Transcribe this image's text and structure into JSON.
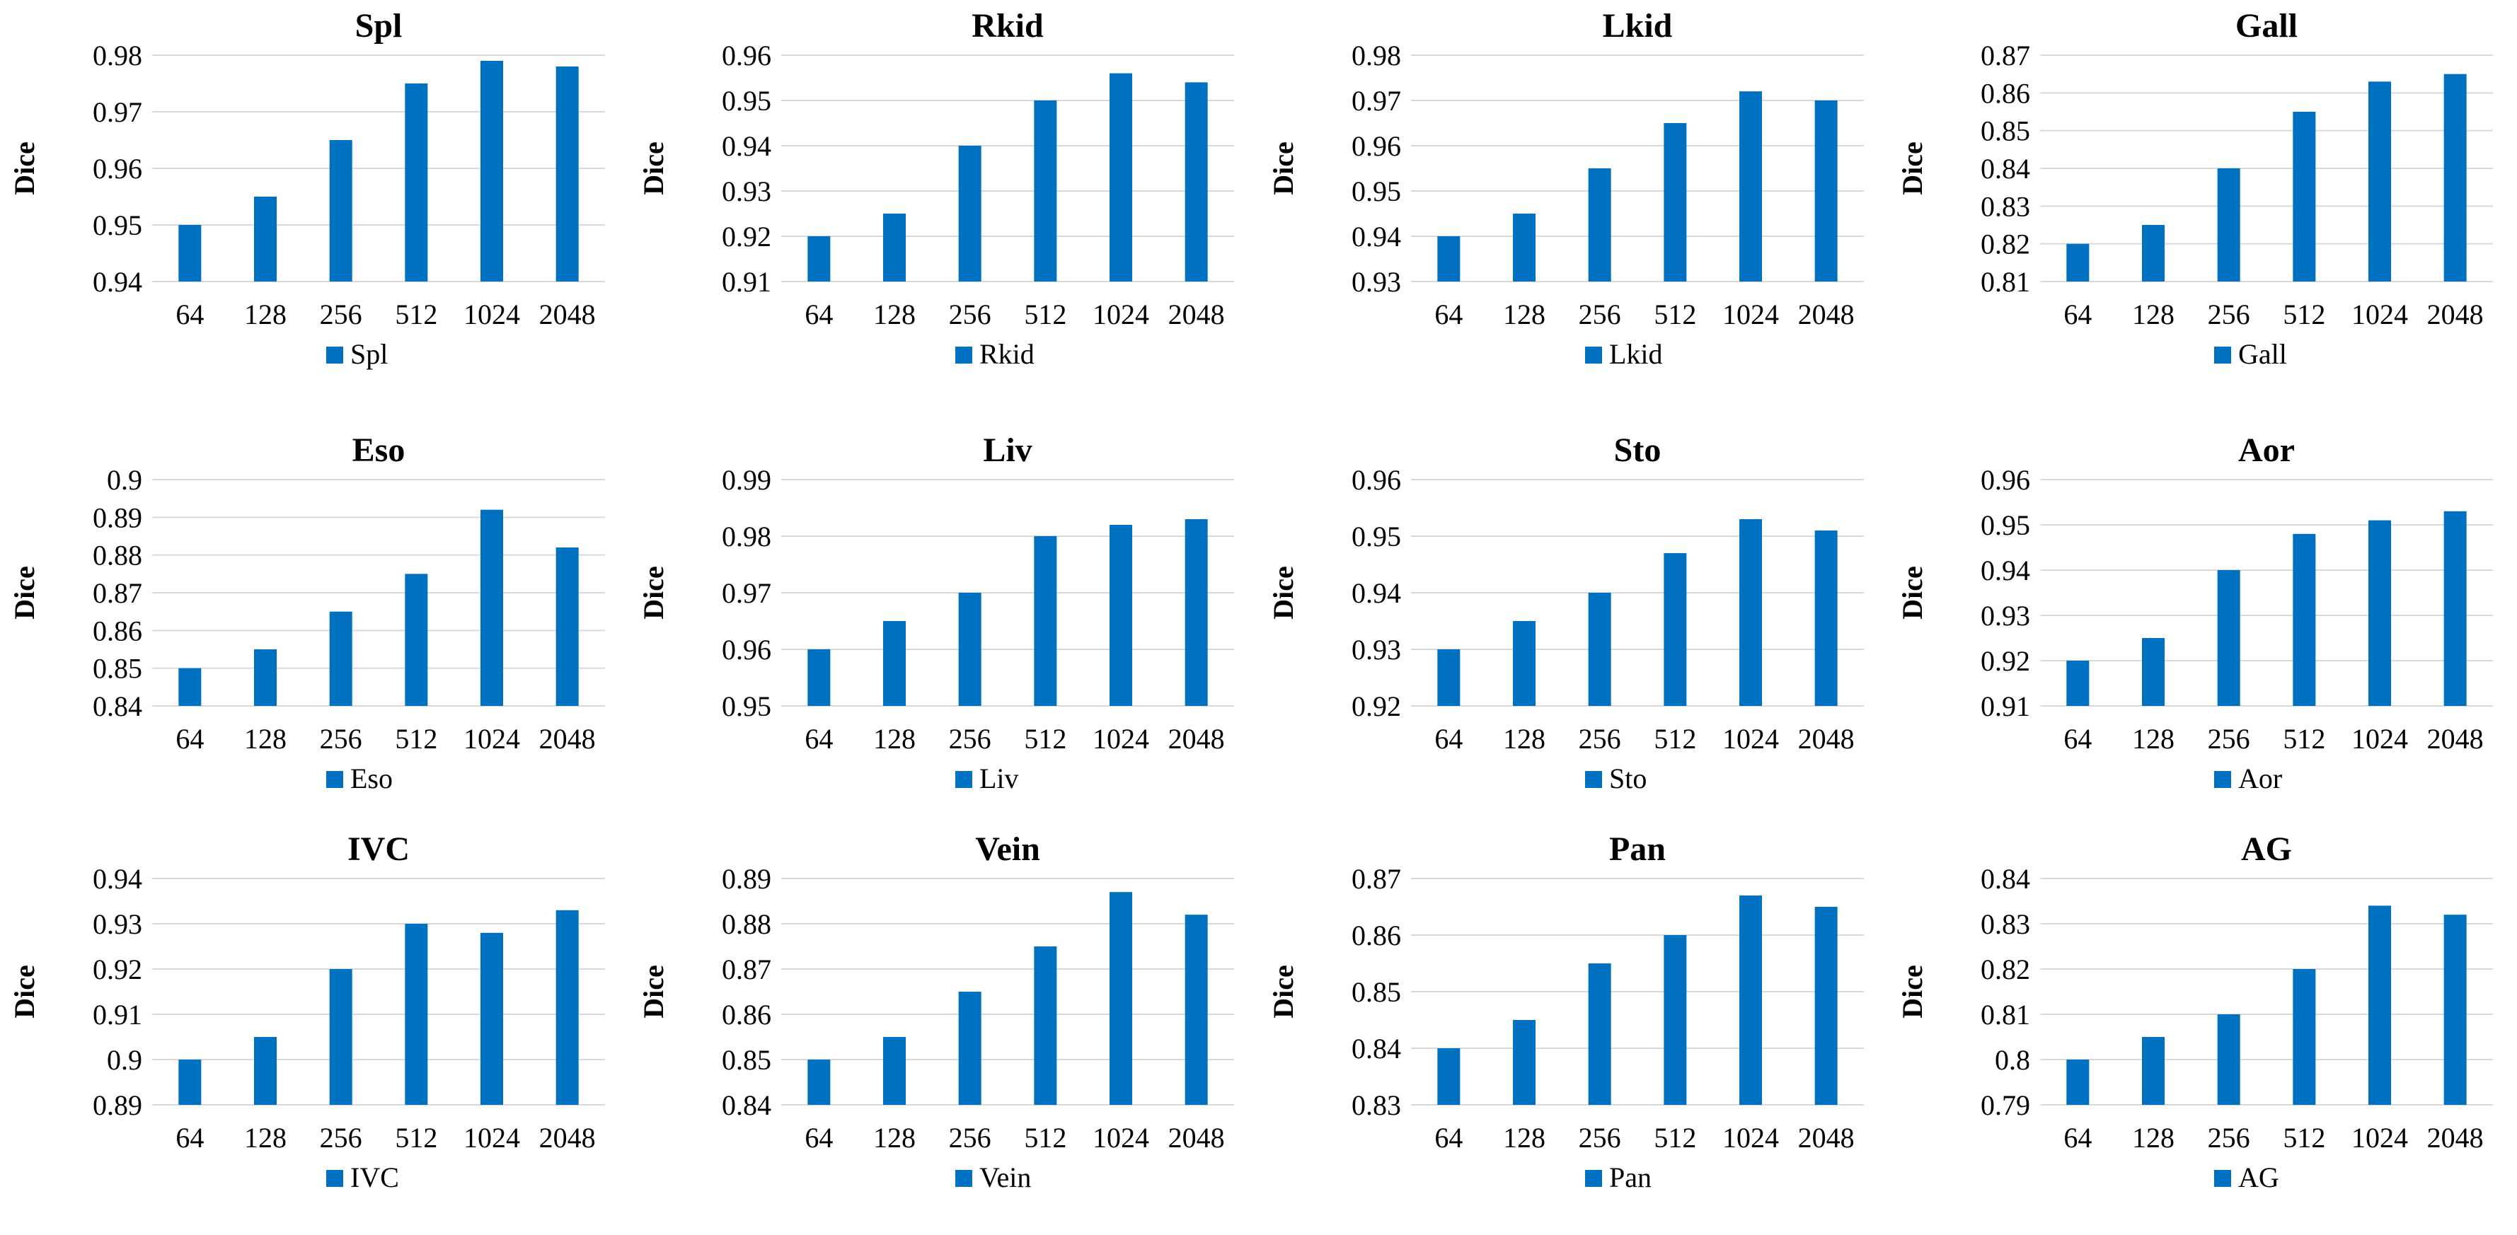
{
  "chart_data": [
    {
      "type": "bar",
      "title": "Spl",
      "ylabel": "Dice",
      "xlabel": "",
      "categories": [
        "64",
        "128",
        "256",
        "512",
        "1024",
        "2048"
      ],
      "values": [
        0.95,
        0.955,
        0.965,
        0.975,
        0.979,
        0.978
      ],
      "ylim": [
        0.94,
        0.98
      ],
      "yticks": [
        "0.94",
        "0.95",
        "0.96",
        "0.97",
        "0.98"
      ],
      "legend": "Spl",
      "color": "#0070C0"
    },
    {
      "type": "bar",
      "title": "Rkid",
      "ylabel": "Dice",
      "xlabel": "",
      "categories": [
        "64",
        "128",
        "256",
        "512",
        "1024",
        "2048"
      ],
      "values": [
        0.92,
        0.925,
        0.94,
        0.95,
        0.956,
        0.954
      ],
      "ylim": [
        0.91,
        0.96
      ],
      "yticks": [
        "0.91",
        "0.92",
        "0.93",
        "0.94",
        "0.95",
        "0.96"
      ],
      "legend": "Rkid",
      "color": "#0070C0"
    },
    {
      "type": "bar",
      "title": "Lkid",
      "ylabel": "Dice",
      "xlabel": "",
      "categories": [
        "64",
        "128",
        "256",
        "512",
        "1024",
        "2048"
      ],
      "values": [
        0.94,
        0.945,
        0.955,
        0.965,
        0.972,
        0.97
      ],
      "ylim": [
        0.93,
        0.98
      ],
      "yticks": [
        "0.93",
        "0.94",
        "0.95",
        "0.96",
        "0.97",
        "0.98"
      ],
      "legend": "Lkid",
      "color": "#0070C0"
    },
    {
      "type": "bar",
      "title": "Gall",
      "ylabel": "Dice",
      "xlabel": "",
      "categories": [
        "64",
        "128",
        "256",
        "512",
        "1024",
        "2048"
      ],
      "values": [
        0.82,
        0.825,
        0.84,
        0.855,
        0.863,
        0.865
      ],
      "ylim": [
        0.81,
        0.87
      ],
      "yticks": [
        "0.81",
        "0.82",
        "0.83",
        "0.84",
        "0.85",
        "0.86",
        "0.87"
      ],
      "legend": "Gall",
      "color": "#0070C0"
    },
    {
      "type": "bar",
      "title": "Eso",
      "ylabel": "Dice",
      "xlabel": "",
      "categories": [
        "64",
        "128",
        "256",
        "512",
        "1024",
        "2048"
      ],
      "values": [
        0.85,
        0.855,
        0.865,
        0.875,
        0.892,
        0.882
      ],
      "ylim": [
        0.84,
        0.9
      ],
      "yticks": [
        "0.84",
        "0.85",
        "0.86",
        "0.87",
        "0.88",
        "0.89",
        "0.9"
      ],
      "legend": "Eso",
      "color": "#0070C0"
    },
    {
      "type": "bar",
      "title": "Liv",
      "ylabel": "Dice",
      "xlabel": "",
      "categories": [
        "64",
        "128",
        "256",
        "512",
        "1024",
        "2048"
      ],
      "values": [
        0.96,
        0.965,
        0.97,
        0.98,
        0.982,
        0.983
      ],
      "ylim": [
        0.95,
        0.99
      ],
      "yticks": [
        "0.95",
        "0.96",
        "0.97",
        "0.98",
        "0.99"
      ],
      "legend": "Liv",
      "color": "#0070C0"
    },
    {
      "type": "bar",
      "title": "Sto",
      "ylabel": "Dice",
      "xlabel": "",
      "categories": [
        "64",
        "128",
        "256",
        "512",
        "1024",
        "2048"
      ],
      "values": [
        0.93,
        0.935,
        0.94,
        0.947,
        0.953,
        0.951
      ],
      "ylim": [
        0.92,
        0.96
      ],
      "yticks": [
        "0.92",
        "0.93",
        "0.94",
        "0.95",
        "0.96"
      ],
      "legend": "Sto",
      "color": "#0070C0"
    },
    {
      "type": "bar",
      "title": "Aor",
      "ylabel": "Dice",
      "xlabel": "",
      "categories": [
        "64",
        "128",
        "256",
        "512",
        "1024",
        "2048"
      ],
      "values": [
        0.92,
        0.925,
        0.94,
        0.948,
        0.951,
        0.953
      ],
      "ylim": [
        0.91,
        0.96
      ],
      "yticks": [
        "0.91",
        "0.92",
        "0.93",
        "0.94",
        "0.95",
        "0.96"
      ],
      "legend": "Aor",
      "color": "#0070C0"
    },
    {
      "type": "bar",
      "title": "IVC",
      "ylabel": "Dice",
      "xlabel": "",
      "categories": [
        "64",
        "128",
        "256",
        "512",
        "1024",
        "2048"
      ],
      "values": [
        0.9,
        0.905,
        0.92,
        0.93,
        0.928,
        0.933
      ],
      "ylim": [
        0.89,
        0.94
      ],
      "yticks": [
        "0.89",
        "0.9",
        "0.91",
        "0.92",
        "0.93",
        "0.94"
      ],
      "legend": "IVC",
      "color": "#0070C0"
    },
    {
      "type": "bar",
      "title": "Vein",
      "ylabel": "Dice",
      "xlabel": "",
      "categories": [
        "64",
        "128",
        "256",
        "512",
        "1024",
        "2048"
      ],
      "values": [
        0.85,
        0.855,
        0.865,
        0.875,
        0.887,
        0.882
      ],
      "ylim": [
        0.84,
        0.89
      ],
      "yticks": [
        "0.84",
        "0.85",
        "0.86",
        "0.87",
        "0.88",
        "0.89"
      ],
      "legend": "Vein",
      "color": "#0070C0"
    },
    {
      "type": "bar",
      "title": "Pan",
      "ylabel": "Dice",
      "xlabel": "",
      "categories": [
        "64",
        "128",
        "256",
        "512",
        "1024",
        "2048"
      ],
      "values": [
        0.84,
        0.845,
        0.855,
        0.86,
        0.867,
        0.865
      ],
      "ylim": [
        0.83,
        0.87
      ],
      "yticks": [
        "0.83",
        "0.84",
        "0.85",
        "0.86",
        "0.87"
      ],
      "legend": "Pan",
      "color": "#0070C0"
    },
    {
      "type": "bar",
      "title": "AG",
      "ylabel": "Dice",
      "xlabel": "",
      "categories": [
        "64",
        "128",
        "256",
        "512",
        "1024",
        "2048"
      ],
      "values": [
        0.8,
        0.805,
        0.81,
        0.82,
        0.834,
        0.832
      ],
      "ylim": [
        0.79,
        0.84
      ],
      "yticks": [
        "0.79",
        "0.8",
        "0.81",
        "0.82",
        "0.83",
        "0.84"
      ],
      "legend": "AG",
      "color": "#0070C0"
    }
  ]
}
